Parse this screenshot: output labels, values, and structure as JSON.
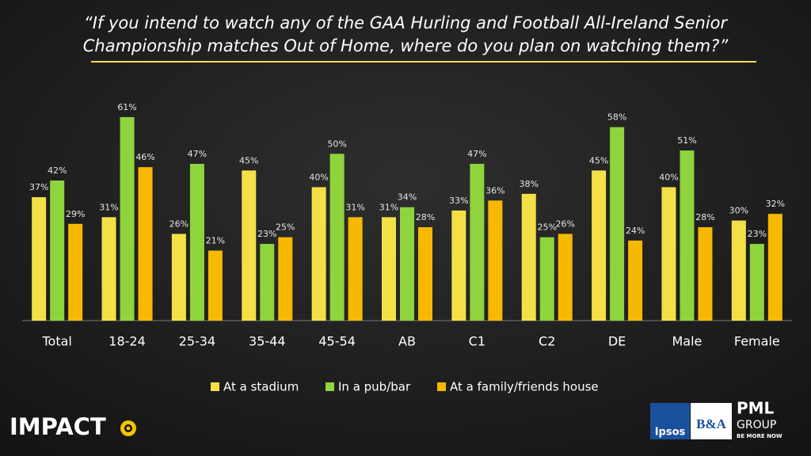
{
  "chart_data": {
    "type": "bar",
    "title": [
      "“If you intend to watch any of the GAA Hurling and Football All-Ireland Senior",
      "Championship matches Out of Home, where do you plan on watching them?”"
    ],
    "categories": [
      "Total",
      "18-24",
      "25-34",
      "35-44",
      "45-54",
      "AB",
      "C1",
      "C2",
      "DE",
      "Male",
      "Female"
    ],
    "series": [
      {
        "name": "At a stadium",
        "color": "#f3e047",
        "values": [
          37,
          31,
          26,
          45,
          40,
          31,
          33,
          38,
          45,
          40,
          30
        ],
        "value_labels": [
          "37%",
          "31%",
          "26%",
          "45%",
          "40%",
          "31%",
          "33%",
          "38%",
          "45%",
          "40%",
          "30%"
        ]
      },
      {
        "name": "In a pub/bar",
        "color": "#8fd43c",
        "values": [
          42,
          61,
          47,
          23,
          50,
          34,
          47,
          25,
          58,
          51,
          23
        ],
        "value_labels": [
          "42%",
          "61%",
          "47%",
          "23%",
          "50%",
          "34%",
          "47%",
          "25%",
          "58%",
          "51%",
          "23%"
        ]
      },
      {
        "name": "At a family/friends house",
        "color": "#f7b900",
        "values": [
          29,
          46,
          21,
          25,
          31,
          28,
          36,
          26,
          24,
          28,
          32
        ],
        "value_labels": [
          "29%",
          "46%",
          "21%",
          "25%",
          "31%",
          "28%",
          "36%",
          "26%",
          "24%",
          "28%",
          "32%"
        ]
      }
    ],
    "ylim": [
      0,
      70
    ],
    "grid": false
  },
  "footer": {
    "impact": "IMPACT",
    "ipsos": "Ipsos",
    "ba": "B&A",
    "pml": "PML",
    "group": "GROUP",
    "tagline": "BE MORE NOW"
  }
}
